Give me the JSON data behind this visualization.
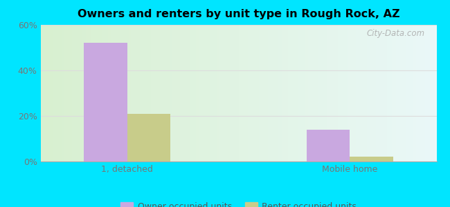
{
  "title": "Owners and renters by unit type in Rough Rock, AZ",
  "categories": [
    "1, detached",
    "Mobile home"
  ],
  "owner_values": [
    52,
    14
  ],
  "renter_values": [
    21,
    2
  ],
  "owner_color": "#c9a8e0",
  "renter_color": "#c8cc8a",
  "ylim": [
    0,
    60
  ],
  "yticks": [
    0,
    20,
    40,
    60
  ],
  "ytick_labels": [
    "0%",
    "20%",
    "40%",
    "60%"
  ],
  "outer_background": "#00e5ff",
  "watermark": "City-Data.com",
  "legend_owner": "Owner occupied units",
  "legend_renter": "Renter occupied units",
  "bar_width": 0.35,
  "group_positions": [
    1.0,
    2.8
  ],
  "xlim": [
    0.3,
    3.5
  ],
  "grid_color": "#dddddd",
  "tick_label_color": "#777777"
}
